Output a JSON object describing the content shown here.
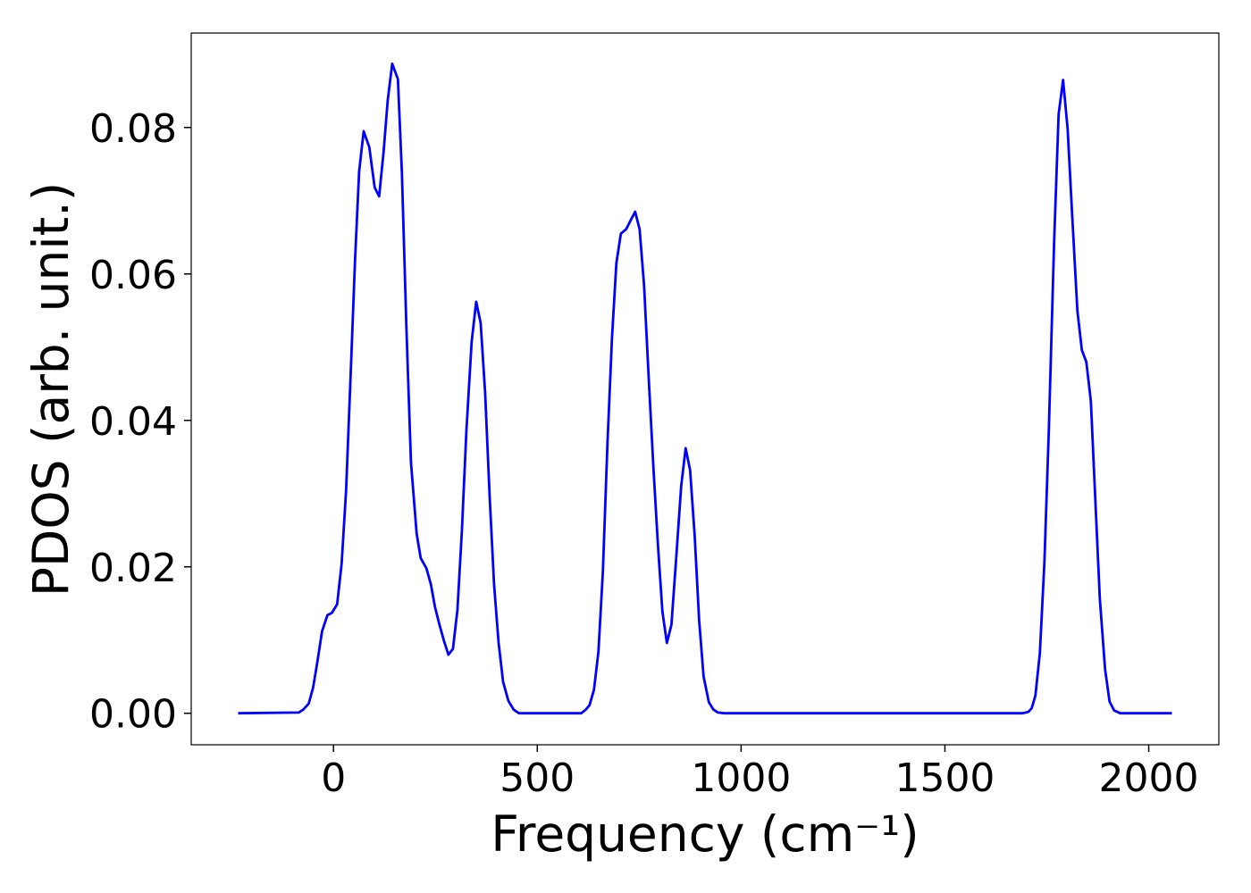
{
  "chart_data": {
    "type": "line",
    "x_label": "Frequency (cm⁻¹)",
    "y_label": "PDOS (arb. unit.)",
    "x": [
      -234,
      -85,
      -74,
      -61,
      -50,
      -39,
      -28,
      -15,
      -4,
      9,
      20,
      31,
      42,
      53,
      63,
      74,
      88,
      101,
      112,
      123,
      133,
      144,
      158,
      168,
      179,
      190,
      204,
      214,
      228,
      239,
      249,
      260,
      271,
      282,
      293,
      304,
      315,
      326,
      339,
      350,
      361,
      372,
      383,
      394,
      405,
      416,
      429,
      442,
      455,
      608,
      619,
      628,
      639,
      650,
      661,
      672,
      683,
      694,
      705,
      718,
      729,
      740,
      751,
      762,
      773,
      785,
      796,
      807,
      818,
      829,
      840,
      853,
      864,
      875,
      886,
      897,
      908,
      921,
      932,
      943,
      958,
      1691,
      1705,
      1713,
      1722,
      1733,
      1744,
      1755,
      1768,
      1779,
      1790,
      1801,
      1812,
      1825,
      1836,
      1847,
      1858,
      1869,
      1880,
      1893,
      1904,
      1915,
      1930,
      2057
    ],
    "series": [
      {
        "name": "PDOS",
        "color": "#0000ff",
        "values": [
          0,
          0.0001,
          0.0005,
          0.0013,
          0.0035,
          0.0072,
          0.0112,
          0.0134,
          0.0137,
          0.0149,
          0.0204,
          0.0304,
          0.0462,
          0.0621,
          0.074,
          0.0795,
          0.0773,
          0.0718,
          0.0706,
          0.0767,
          0.0837,
          0.0887,
          0.0866,
          0.0737,
          0.0523,
          0.0343,
          0.0245,
          0.0212,
          0.0198,
          0.0176,
          0.0145,
          0.0121,
          0.0099,
          0.008,
          0.0088,
          0.0141,
          0.0249,
          0.0385,
          0.0507,
          0.0562,
          0.0533,
          0.0438,
          0.0298,
          0.0176,
          0.0096,
          0.0043,
          0.0017,
          0.0005,
          0,
          0,
          0.0005,
          0.0011,
          0.0032,
          0.0084,
          0.0194,
          0.0365,
          0.0511,
          0.0615,
          0.0655,
          0.0661,
          0.0673,
          0.0685,
          0.0661,
          0.0584,
          0.0462,
          0.0334,
          0.023,
          0.0139,
          0.0096,
          0.0121,
          0.0206,
          0.031,
          0.0362,
          0.0332,
          0.0243,
          0.0127,
          0.005,
          0.0015,
          0.0005,
          0.0001,
          0,
          0,
          0.0002,
          0.0007,
          0.0024,
          0.0082,
          0.0206,
          0.0389,
          0.0645,
          0.0818,
          0.0865,
          0.0798,
          0.0682,
          0.055,
          0.0496,
          0.048,
          0.0426,
          0.0291,
          0.0157,
          0.006,
          0.0016,
          0.0004,
          0,
          0
        ]
      }
    ],
    "xlim": [
      -349,
      2172
    ],
    "ylim": [
      -0.0043,
      0.0929
    ],
    "xticks": [
      0,
      500,
      1000,
      1500,
      2000
    ],
    "yticks": [
      {
        "value": 0,
        "label": "0.00"
      },
      {
        "value": 0.02,
        "label": "0.02"
      },
      {
        "value": 0.04,
        "label": "0.04"
      },
      {
        "value": 0.06,
        "label": "0.06"
      },
      {
        "value": 0.08,
        "label": "0.08"
      }
    ],
    "grid": false
  }
}
